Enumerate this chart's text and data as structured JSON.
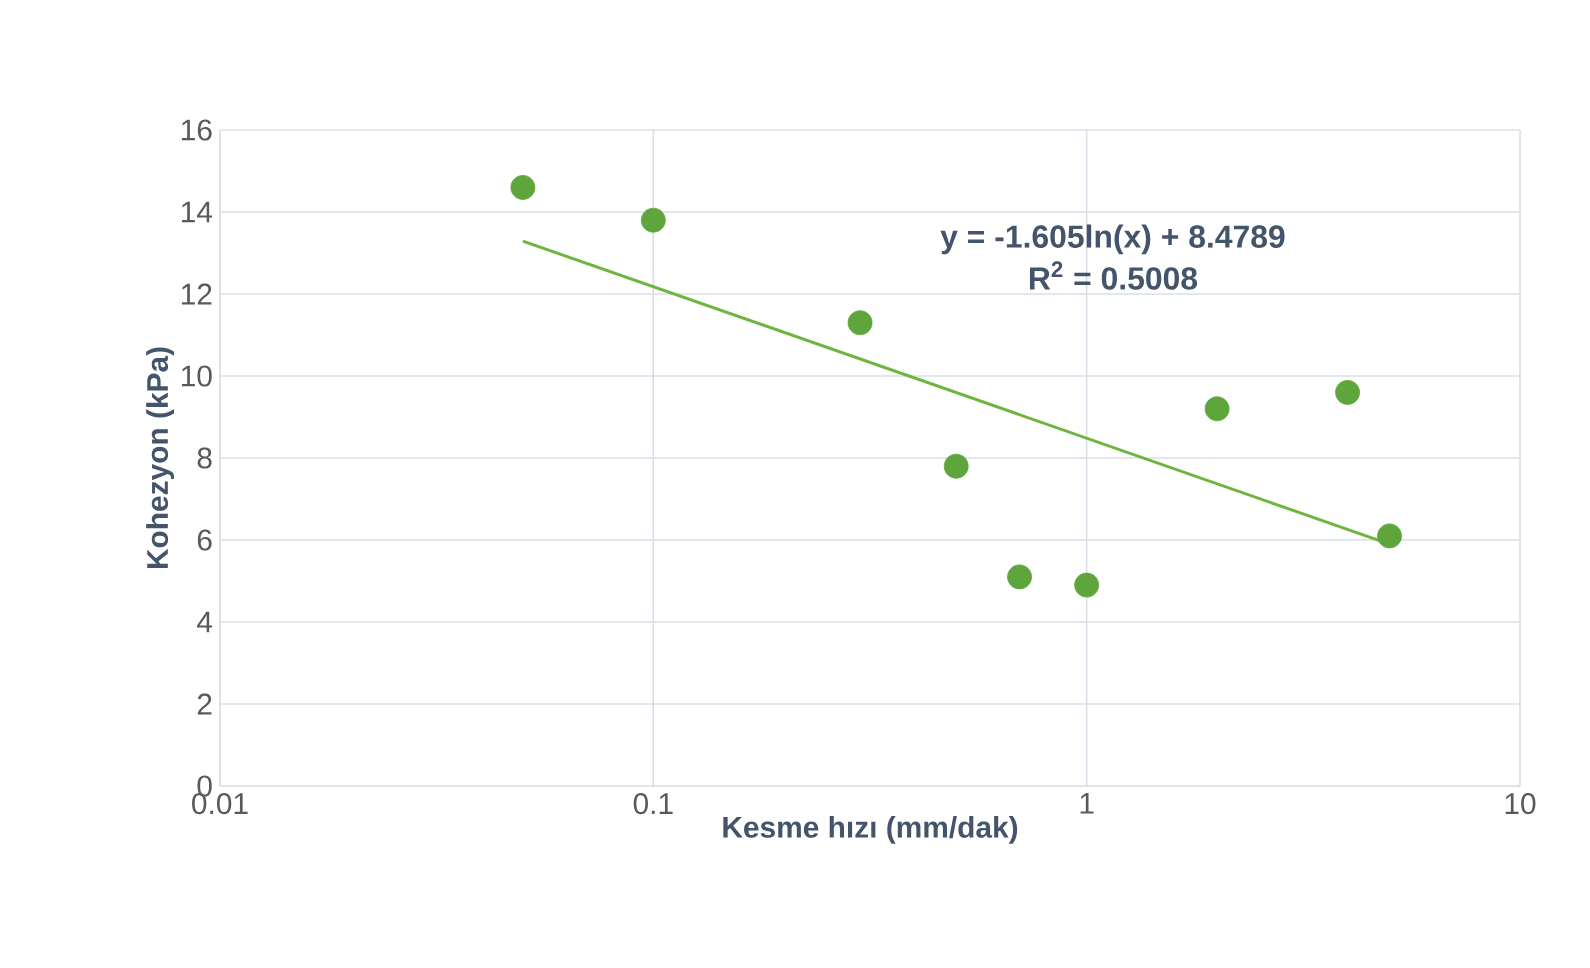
{
  "chart_data": {
    "type": "scatter",
    "xlabel": "Kesme hızı (mm/dak)",
    "ylabel": "Kohezyon (kPa)",
    "log": "x",
    "grid": true,
    "xlim": [
      0.01,
      10
    ],
    "xticks": [
      0.01,
      0.1,
      1,
      10
    ],
    "ylim": [
      0,
      16
    ],
    "yticks": [
      0,
      2,
      4,
      6,
      8,
      10,
      12,
      14,
      16
    ],
    "annotations": [
      "y = -1.605ln(x) + 8.4789",
      "R$^{2}$ = 0.5008"
    ],
    "series": [
      {
        "marker": "circle",
        "color": "#5ea53c",
        "x": [
          0.05,
          0.1,
          0.3,
          0.5,
          0.7,
          1,
          2,
          4,
          5
        ],
        "values": [
          14.6,
          13.8,
          11.3,
          7.8,
          5.1,
          4.9,
          9.2,
          9.6,
          6.1
        ]
      },
      {
        "type": "line",
        "marker": "none",
        "color": "#6fb43f",
        "x": [
          0.05,
          5
        ],
        "values": [
          13.29,
          5.9
        ]
      }
    ]
  }
}
